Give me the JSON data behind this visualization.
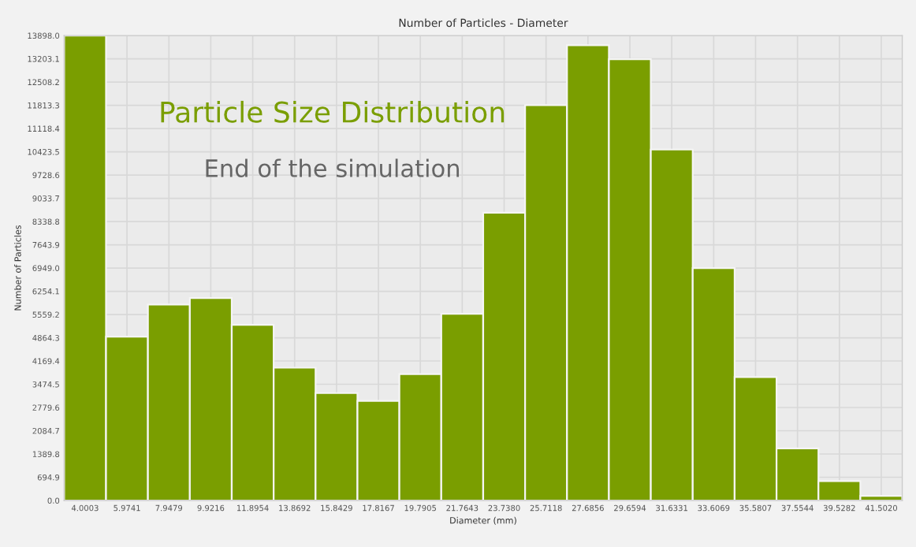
{
  "chart_data": {
    "type": "bar",
    "title": "Number of Particles - Diameter",
    "xlabel": "Diameter (mm)",
    "ylabel": "Number of Particles",
    "categories": [
      "4.0003",
      "5.9741",
      "7.9479",
      "9.9216",
      "11.8954",
      "13.8692",
      "15.8429",
      "17.8167",
      "19.7905",
      "21.7643",
      "23.7380",
      "25.7118",
      "27.6856",
      "29.6594",
      "31.6331",
      "33.6069",
      "35.5807",
      "37.5544",
      "39.5282",
      "41.5020"
    ],
    "values": [
      13898,
      4900,
      5860,
      6050,
      5250,
      3970,
      3210,
      2980,
      3780,
      5580,
      8600,
      11820,
      13610,
      13190,
      10490,
      6950,
      3690,
      1560,
      580,
      140
    ],
    "color": "#7a9e00",
    "ylim": [
      0,
      13898.0
    ],
    "yticks": [
      {
        "value": 0,
        "label": "0.0"
      },
      {
        "value": 694.9,
        "label": "694.9"
      },
      {
        "value": 1389.8,
        "label": "1389.8"
      },
      {
        "value": 2084.7,
        "label": "2084.7"
      },
      {
        "value": 2779.6,
        "label": "2779.6"
      },
      {
        "value": 3474.5,
        "label": "3474.5"
      },
      {
        "value": 4169.4,
        "label": "4169.4"
      },
      {
        "value": 4864.3,
        "label": "4864.3"
      },
      {
        "value": 5559.2,
        "label": "5559.2"
      },
      {
        "value": 6254.1,
        "label": "6254.1"
      },
      {
        "value": 6949.0,
        "label": "6949.0"
      },
      {
        "value": 7643.9,
        "label": "7643.9"
      },
      {
        "value": 8338.8,
        "label": "8338.8"
      },
      {
        "value": 9033.7,
        "label": "9033.7"
      },
      {
        "value": 9728.6,
        "label": "9728.6"
      },
      {
        "value": 10423.5,
        "label": "10423.5"
      },
      {
        "value": 11118.4,
        "label": "11118.4"
      },
      {
        "value": 11813.3,
        "label": "11813.3"
      },
      {
        "value": 12508.2,
        "label": "12508.2"
      },
      {
        "value": 13203.1,
        "label": "13203.1"
      },
      {
        "value": 13898.0,
        "label": "13898.0"
      }
    ],
    "grid": true,
    "annotations": [
      "Particle Size Distribution",
      "End of the simulation"
    ]
  }
}
